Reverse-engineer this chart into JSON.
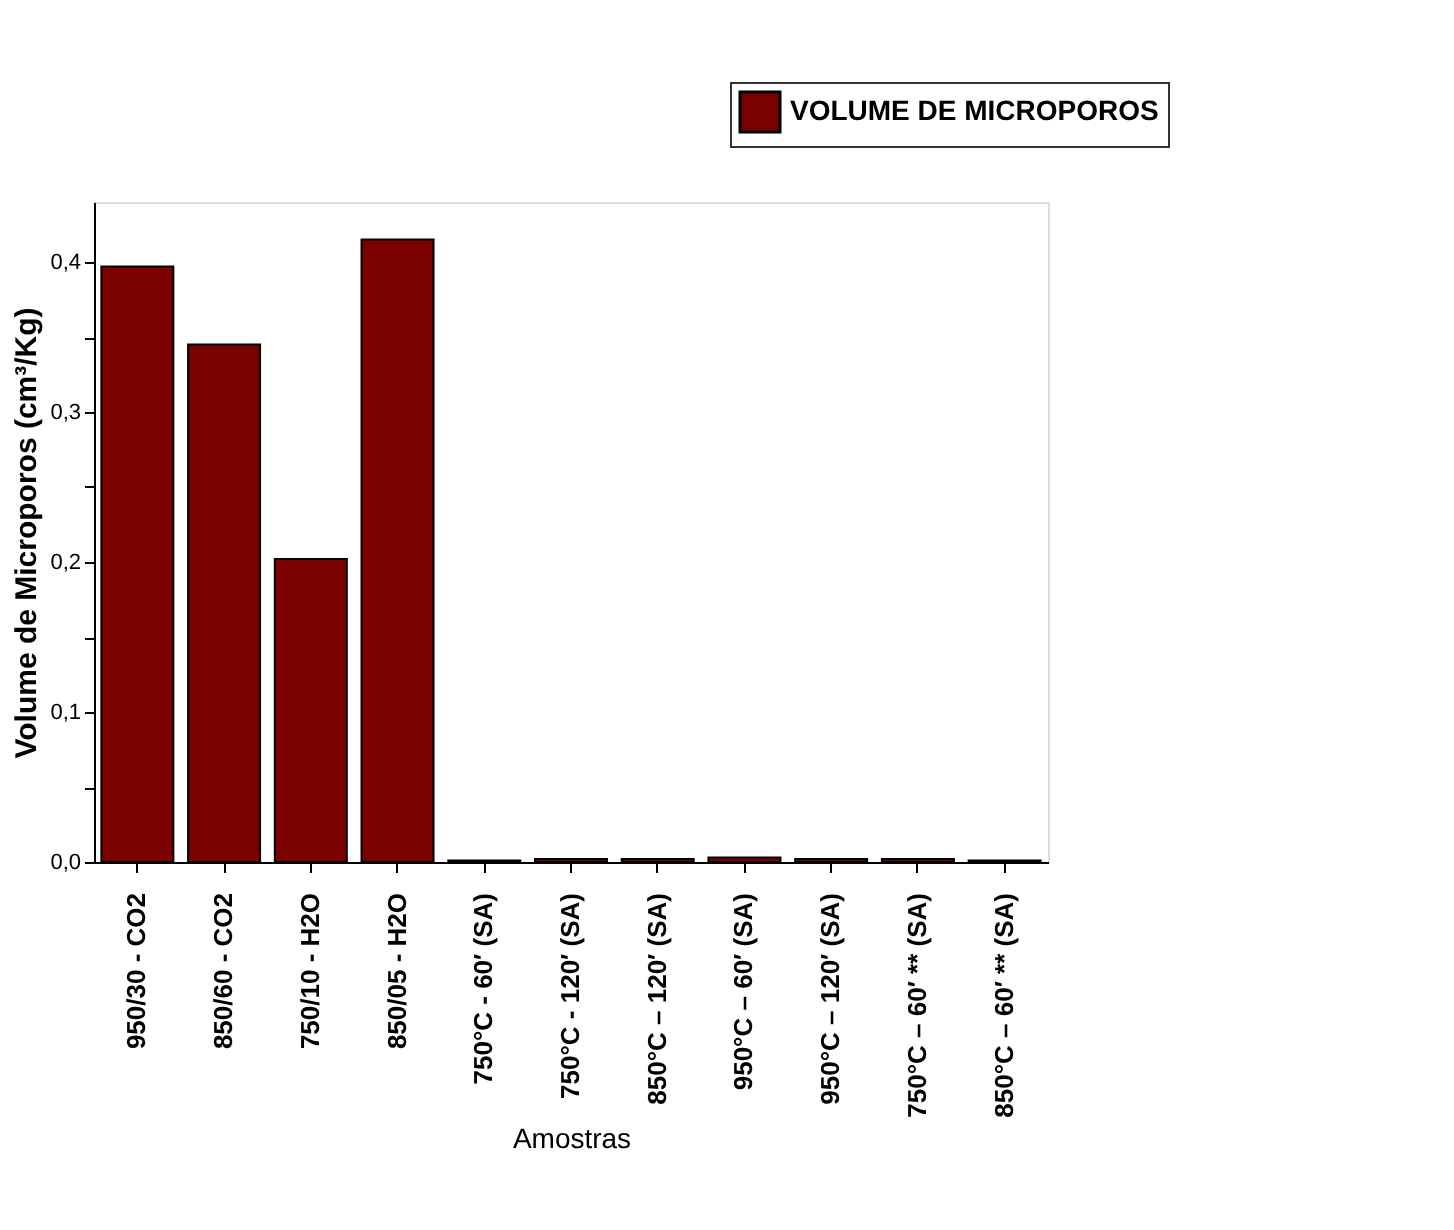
{
  "chart_data": {
    "type": "bar",
    "xlabel": "Amostras",
    "ylabel": "Volume de Microporos (cm³/Kg)",
    "categories": [
      "950/30 - CO2",
      "850/60 - CO2",
      "750/10 - H2O",
      "850/05 - H2O",
      "750°C - 60′ (SA)",
      "750°C - 120′ (SA)",
      "850°C – 120′ (SA)",
      "950°C – 60′ (SA)",
      "950°C – 120′ (SA)",
      "750°C – 60′ ** (SA)",
      "850°C – 60′ ** (SA)"
    ],
    "series": [
      {
        "name": "VOLUME DE MICROPOROS",
        "color": "#7b0000",
        "values": [
          0.397,
          0.345,
          0.202,
          0.415,
          0.001,
          0.002,
          0.002,
          0.003,
          0.002,
          0.002,
          0.001
        ]
      }
    ],
    "ylim": [
      0,
      0.44
    ],
    "yticks": [
      {
        "value": 0,
        "label": "0,0"
      },
      {
        "value": 0.05,
        "label": null
      },
      {
        "value": 0.1,
        "label": "0,1"
      },
      {
        "value": 0.15,
        "label": null
      },
      {
        "value": 0.2,
        "label": "0,2"
      },
      {
        "value": 0.25,
        "label": null
      },
      {
        "value": 0.3,
        "label": "0,3"
      },
      {
        "value": 0.35,
        "label": null
      },
      {
        "value": 0.4,
        "label": "0,4"
      }
    ],
    "grid": false,
    "legend": "top right"
  }
}
